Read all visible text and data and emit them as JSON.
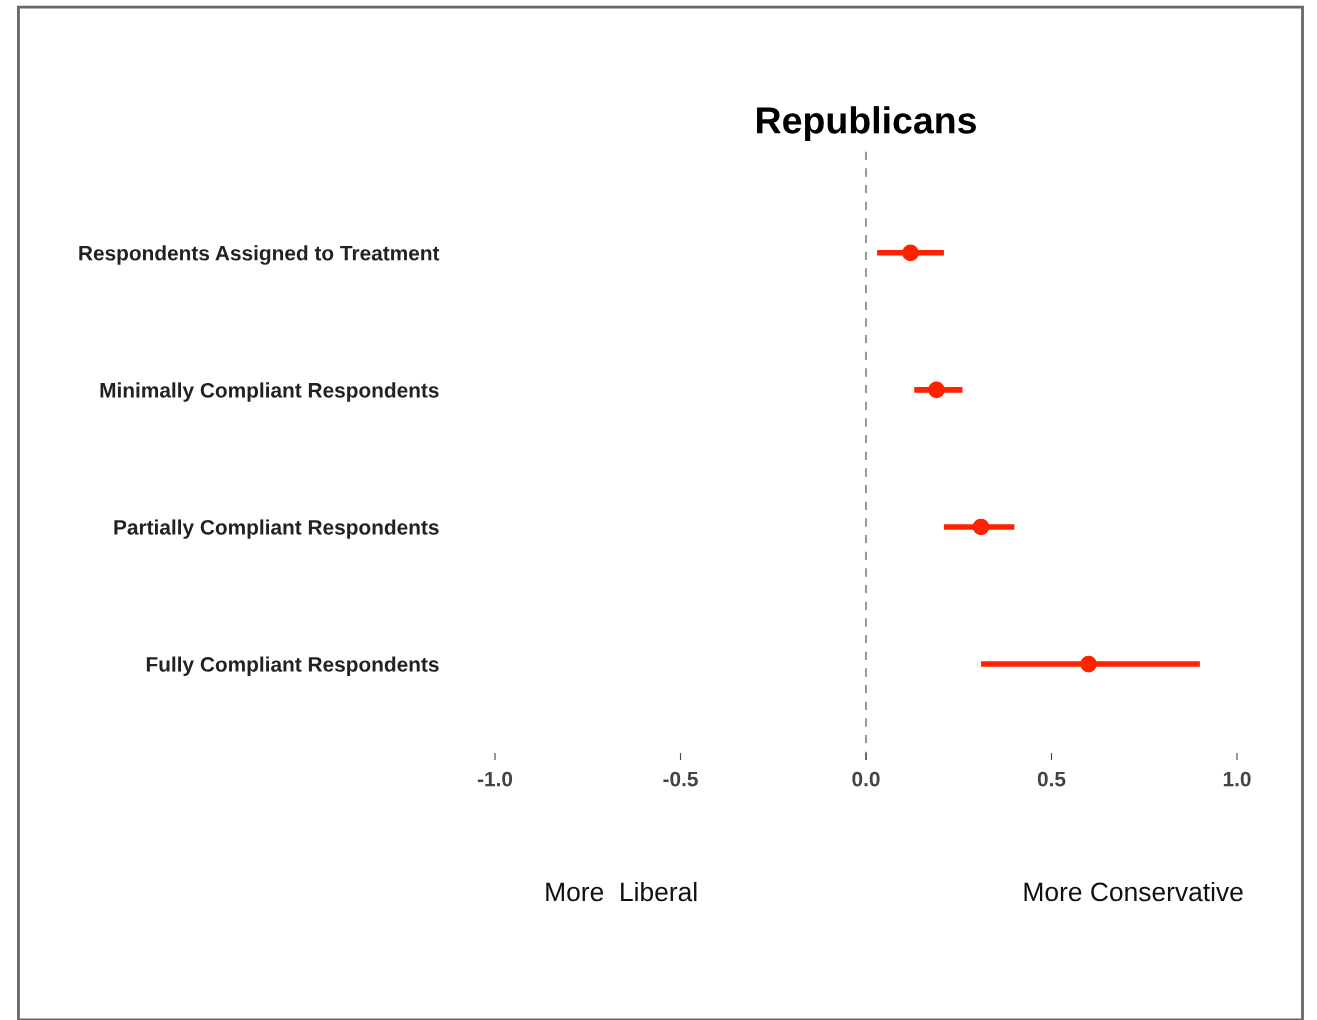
{
  "chart_data": {
    "type": "scatter",
    "title": "Republicans",
    "categories": [
      "Respondents Assigned to Treatment",
      "Minimally Compliant Respondents",
      "Partially Compliant Respondents",
      "Fully Compliant Respondents"
    ],
    "orientation": "horizontal",
    "series": [
      {
        "color": "#ff2200",
        "values": [
          0.12,
          0.19,
          0.31,
          0.6
        ],
        "errors": [
          [
            0.03,
            0.21
          ],
          [
            0.13,
            0.26
          ],
          [
            0.21,
            0.4
          ],
          [
            0.31,
            0.9
          ]
        ]
      }
    ],
    "xlim": [
      -1,
      1
    ],
    "xticks": [
      {
        "value": -1,
        "label": "-1.0"
      },
      {
        "value": -0.5,
        "label": "-0.5"
      },
      {
        "value": 0,
        "label": "0.0"
      },
      {
        "value": 0.5,
        "label": "0.5"
      },
      {
        "value": 1,
        "label": "1.0"
      }
    ],
    "ref_lines": [
      {
        "axis": "x",
        "value": 0,
        "color": "#999999",
        "line_style": "dashed"
      }
    ],
    "annotations": [
      "More  Liberal",
      "More Conservative"
    ],
    "marker": "circle",
    "grid": false,
    "legend": false
  }
}
